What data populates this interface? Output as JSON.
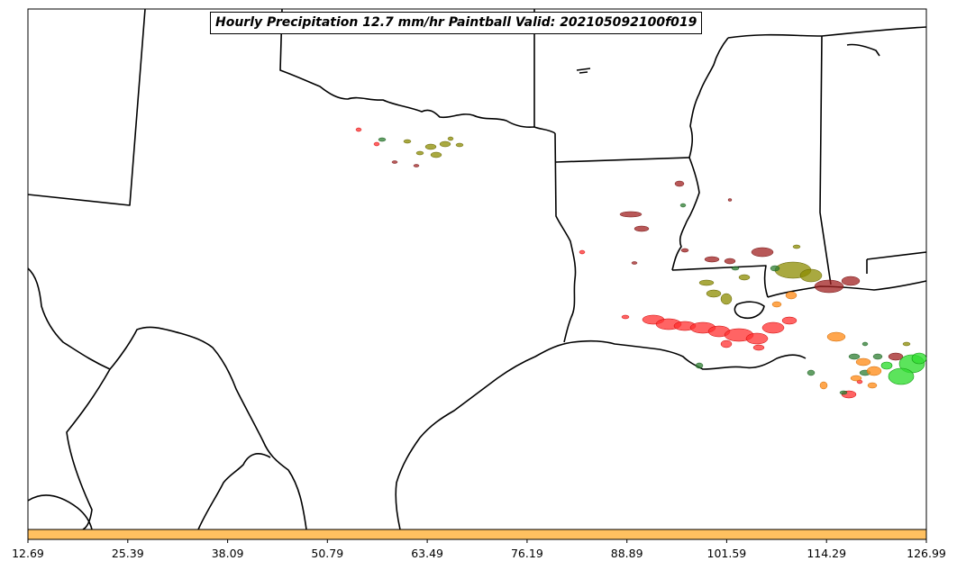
{
  "title": "Hourly Precipitation 12.7 mm/hr Paintball Valid: 202105092100f019",
  "colorbar": {
    "color": "#ffc060",
    "ticks": [
      "12.69",
      "25.39",
      "38.09",
      "50.79",
      "63.49",
      "76.19",
      "88.89",
      "101.59",
      "114.29",
      "126.99"
    ]
  },
  "colors": {
    "red": "#ff3030",
    "dark_red": "#a02020",
    "olive": "#8c8c00",
    "dark_green": "#2e7d32",
    "bright_green": "#33dd33",
    "orange": "#ff9020",
    "border": "#000000"
  }
}
